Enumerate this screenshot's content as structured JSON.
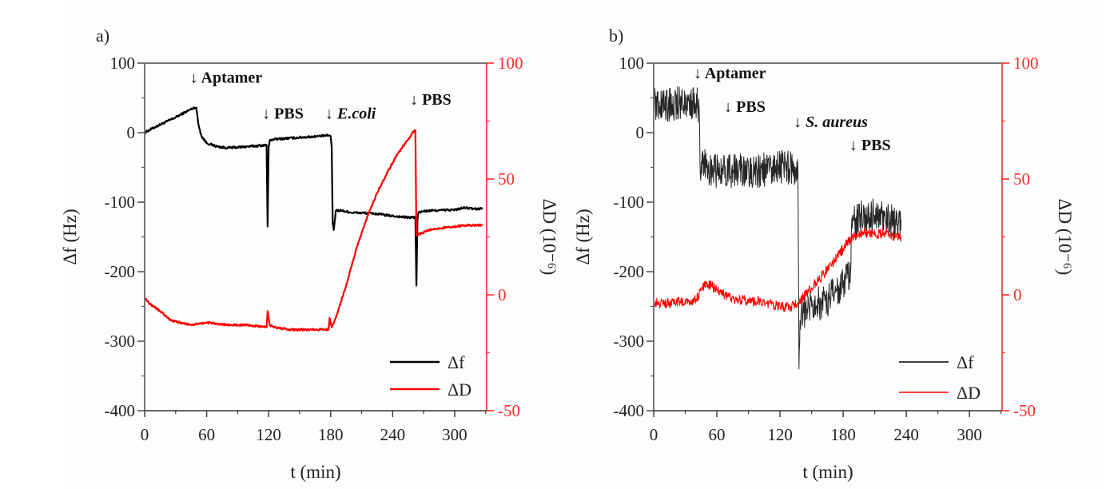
{
  "colors": {
    "df": "#000000",
    "dD": "#ff0000",
    "axis": "#555555",
    "right_axis": "#ff2a2a"
  },
  "chart_data": [
    {
      "panel_label": "a)",
      "type": "line",
      "title": "",
      "xlabel": "t (min)",
      "ylabel_left": "Δf (Hz)",
      "ylabel_right": "ΔD (10⁻⁶)",
      "xlim": [
        0,
        331
      ],
      "ylim_left": [
        -400,
        100
      ],
      "ylim_right": [
        -50,
        100
      ],
      "xticks": [
        0,
        60,
        120,
        180,
        240,
        300
      ],
      "yticks_left": [
        -400,
        -300,
        -200,
        -100,
        0,
        100
      ],
      "yticks_right": [
        -50,
        0,
        50,
        100
      ],
      "grid": false,
      "legend": {
        "placement": "bottom-right",
        "entries": [
          "Δf",
          "ΔD"
        ]
      },
      "annotations": [
        {
          "t": 50,
          "y": 72,
          "text": "↓ Aptamer",
          "italic": false
        },
        {
          "t": 120,
          "y": 20,
          "text": "↓ PBS",
          "italic": false
        },
        {
          "t": 181,
          "y": 20,
          "text": "↓",
          "italic": false,
          "suffix": "E.coli"
        },
        {
          "t": 263,
          "y": 40,
          "text": "↓ PBS",
          "italic": false
        }
      ],
      "series": [
        {
          "name": "Δf",
          "axis": "left",
          "noise": 1.5,
          "t": [
            0,
            10,
            20,
            30,
            40,
            48,
            50,
            52,
            55,
            60,
            70,
            80,
            100,
            118,
            119,
            120,
            121,
            123,
            130,
            150,
            170,
            178,
            180,
            181,
            182,
            183,
            185,
            190,
            200,
            220,
            240,
            255,
            262,
            263,
            264,
            265,
            270,
            280,
            300,
            310,
            320,
            327
          ],
          "values": [
            0,
            8,
            15,
            22,
            30,
            36,
            36,
            12,
            -5,
            -15,
            -20,
            -22,
            -20,
            -18,
            -135,
            -20,
            -12,
            -10,
            -9,
            -7,
            -5,
            -4,
            -5,
            -20,
            -130,
            -140,
            -112,
            -112,
            -115,
            -116,
            -120,
            -122,
            -122,
            -220,
            -125,
            -115,
            -113,
            -112,
            -111,
            -108,
            -110,
            -109
          ]
        },
        {
          "name": "ΔD",
          "axis": "right",
          "noise": 0.4,
          "t": [
            0,
            5,
            15,
            25,
            35,
            45,
            60,
            80,
            100,
            118,
            119,
            121,
            125,
            140,
            160,
            178,
            179,
            181,
            185,
            195,
            205,
            215,
            225,
            235,
            245,
            255,
            261,
            262,
            263,
            265,
            275,
            290,
            310,
            327
          ],
          "values": [
            -1,
            -4,
            -7,
            -11,
            -12,
            -13,
            -12,
            -13,
            -13,
            -14,
            -7,
            -13,
            -14,
            -15,
            -15,
            -15,
            -10,
            -14,
            -10,
            4,
            20,
            33,
            44,
            53,
            61,
            67,
            71,
            71,
            26,
            26,
            28,
            29,
            30,
            30
          ]
        }
      ]
    },
    {
      "panel_label": "b)",
      "type": "line",
      "title": "",
      "xlabel": "t (min)",
      "ylabel_left": "Δf (Hz)",
      "ylabel_right": "ΔD (10⁻⁶)",
      "xlim": [
        0,
        331
      ],
      "ylim_left": [
        -400,
        100
      ],
      "ylim_right": [
        -50,
        100
      ],
      "xticks": [
        0,
        60,
        120,
        180,
        240,
        300
      ],
      "yticks_left": [
        -400,
        -300,
        -200,
        -100,
        0,
        100
      ],
      "yticks_right": [
        -50,
        0,
        50,
        100
      ],
      "grid": false,
      "legend": {
        "placement": "bottom-right",
        "entries": [
          "Δf",
          "ΔD"
        ]
      },
      "annotations": [
        {
          "t": 44,
          "y": 78,
          "text": "↓ Aptamer",
          "italic": false
        },
        {
          "t": 73,
          "y": 30,
          "text": "↓ PBS",
          "italic": false
        },
        {
          "t": 139,
          "y": 8,
          "text": "↓",
          "italic": false,
          "suffix": "S. aureus"
        },
        {
          "t": 192,
          "y": -25,
          "text": "↓ PBS",
          "italic": false
        }
      ],
      "series": [
        {
          "name": "Δf",
          "axis": "left",
          "noise": 25,
          "t": [
            0,
            10,
            20,
            30,
            40,
            43,
            44,
            50,
            60,
            80,
            100,
            120,
            135,
            137,
            138,
            139,
            140,
            145,
            150,
            160,
            170,
            180,
            186,
            187,
            188,
            190,
            200,
            210,
            220,
            230,
            235
          ],
          "values": [
            40,
            38,
            42,
            45,
            40,
            40,
            -45,
            -50,
            -55,
            -55,
            -55,
            -50,
            -50,
            -50,
            -340,
            -270,
            -260,
            -255,
            -250,
            -245,
            -235,
            -220,
            -205,
            -200,
            -130,
            -125,
            -115,
            -120,
            -125,
            -128,
            -125
          ]
        },
        {
          "name": "ΔD",
          "axis": "right",
          "noise": 2.2,
          "t": [
            0,
            10,
            20,
            30,
            40,
            45,
            50,
            55,
            60,
            70,
            80,
            100,
            120,
            130,
            137,
            140,
            150,
            160,
            170,
            180,
            185,
            190,
            200,
            210,
            220,
            230,
            235
          ],
          "values": [
            -3,
            -4,
            -3,
            -3,
            -2,
            2,
            5,
            4,
            2,
            -1,
            -2,
            -3,
            -5,
            -5,
            -4,
            -2,
            3,
            8,
            14,
            20,
            23,
            25,
            27,
            26,
            27,
            25,
            25
          ]
        }
      ]
    }
  ]
}
